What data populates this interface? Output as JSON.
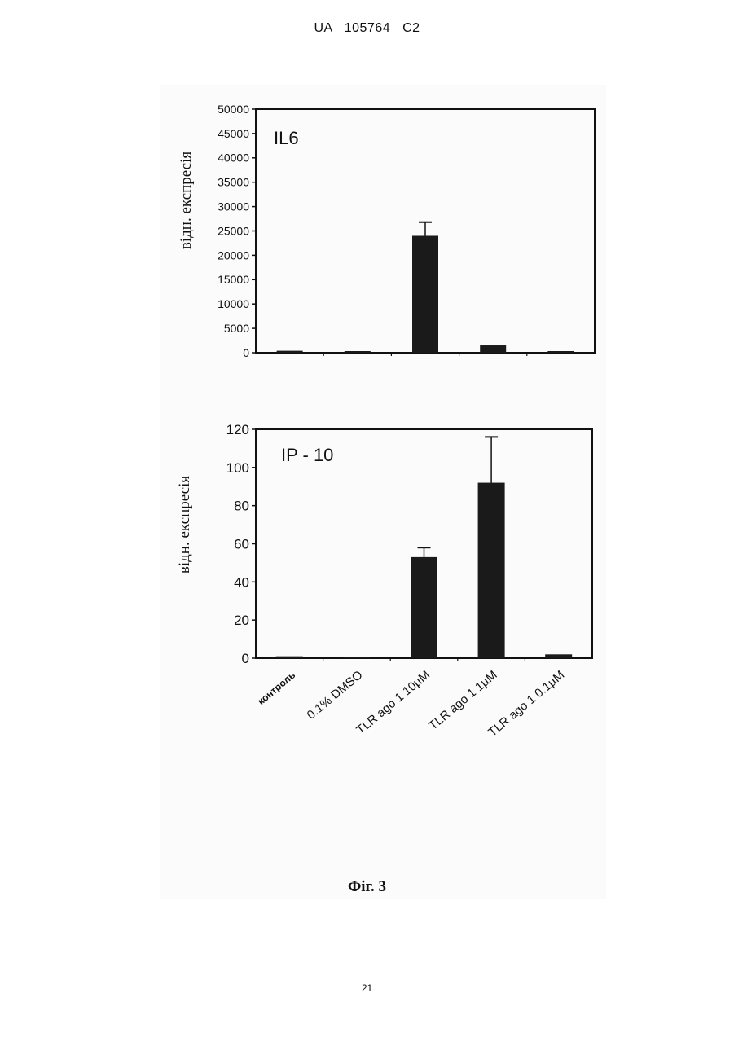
{
  "header": {
    "text": "UA   105764   C2"
  },
  "footer": {
    "page_number": "21",
    "figure_caption": "Фіг. 3"
  },
  "chart_data": [
    {
      "type": "bar",
      "title": "IL6",
      "ylabel": "відн. експресія",
      "xlabel": "",
      "categories": [
        "контроль",
        "0.1% DMSO",
        "TLR ago 1  10µM",
        "TLR ago 1  1µM",
        "TLR ago 1  0.1µM"
      ],
      "values": [
        400,
        300,
        24000,
        1500,
        300
      ],
      "errors": [
        0,
        0,
        2800,
        0,
        0
      ],
      "ylim": [
        0,
        50000
      ],
      "yticks": [
        "0",
        "5000",
        "10000",
        "15000",
        "20000",
        "25000",
        "30000",
        "35000",
        "40000",
        "45000",
        "50000"
      ],
      "grid": false,
      "bar_color": "#1a1a1a"
    },
    {
      "type": "bar",
      "title": "IP - 10",
      "ylabel": "відн. експресія",
      "xlabel": "",
      "categories": [
        "контроль",
        "0.1% DMSO",
        "TLR ago 1  10µM",
        "TLR ago 1  1µM",
        "TLR ago 1  0.1µM"
      ],
      "values": [
        1,
        0.8,
        53,
        92,
        2
      ],
      "errors": [
        0,
        0,
        5,
        24,
        0
      ],
      "ylim": [
        0,
        120
      ],
      "yticks": [
        "0",
        "20",
        "40",
        "60",
        "80",
        "100",
        "120"
      ],
      "grid": false,
      "bar_color": "#1a1a1a"
    }
  ]
}
